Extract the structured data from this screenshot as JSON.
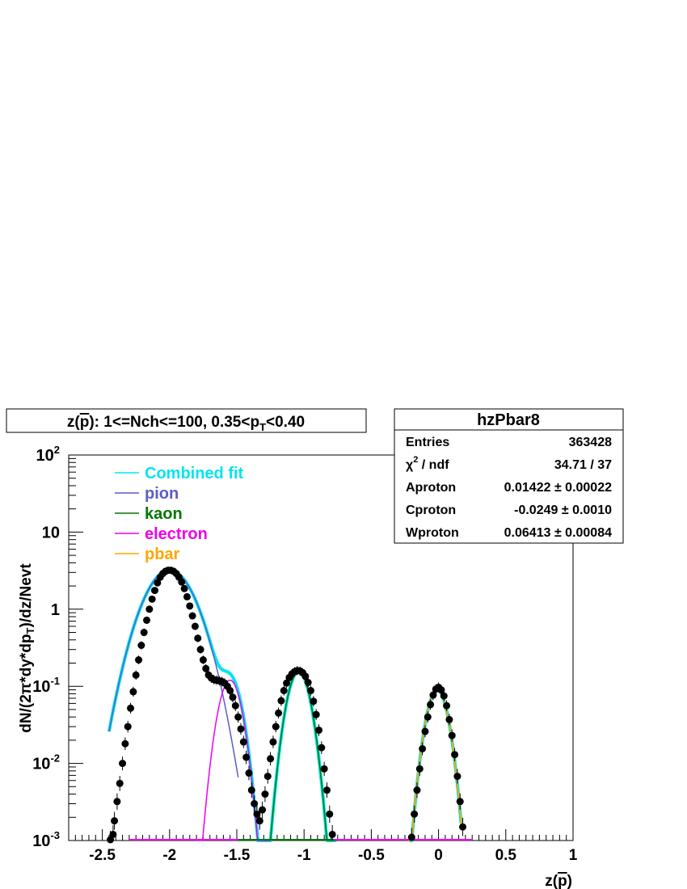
{
  "chart_data": {
    "type": "scatter",
    "title": "z(p̄): 1<=Nch<=100, 0.35<pT<0.40",
    "title_parts": {
      "lead": "z(",
      "p": "p",
      "after_p": "): 1<=Nch<=100, 0.35<p",
      "sub": "T",
      "tail": "<0.40"
    },
    "xlabel": "z(p̄)",
    "xlabel_parts": {
      "lead": "z(",
      "p": "p",
      "tail": ")"
    },
    "ylabel": "dN/(2π*dy*dpT)/dz/Nevt",
    "ylabel_parts": {
      "lead": "dN/(2π*dy*dp",
      "sub": "T",
      "tail": ")/dz/Nevt"
    },
    "xlim": [
      -2.75,
      1.0
    ],
    "ylim": [
      0.001,
      100
    ],
    "yscale": "log",
    "grid": false,
    "legend_placement": "top-left",
    "x_ticks": [
      -2.5,
      -2,
      -1.5,
      -1,
      -0.5,
      0,
      0.5,
      1
    ],
    "x_tick_labels": [
      "-2.5",
      "-2",
      "-1.5",
      "-1",
      "-0.5",
      "0",
      "0.5",
      "1"
    ],
    "y_ticks": [
      {
        "value": 0.001,
        "base": "10",
        "exp": "-3"
      },
      {
        "value": 0.01,
        "base": "10",
        "exp": "-2"
      },
      {
        "value": 0.1,
        "base": "10",
        "exp": "-1"
      },
      {
        "value": 1,
        "base": "1",
        "exp": ""
      },
      {
        "value": 10,
        "base": "10",
        "exp": ""
      },
      {
        "value": 100,
        "base": "10",
        "exp": "2"
      }
    ],
    "data_points": [
      {
        "x": -2.44,
        "y": 0.001
      },
      {
        "x": -2.42,
        "y": 0.0012
      },
      {
        "x": -2.41,
        "y": 0.0018
      },
      {
        "x": -2.39,
        "y": 0.0032
      },
      {
        "x": -2.37,
        "y": 0.0055
      },
      {
        "x": -2.35,
        "y": 0.01
      },
      {
        "x": -2.33,
        "y": 0.018
      },
      {
        "x": -2.31,
        "y": 0.03
      },
      {
        "x": -2.29,
        "y": 0.052
      },
      {
        "x": -2.27,
        "y": 0.085
      },
      {
        "x": -2.25,
        "y": 0.14
      },
      {
        "x": -2.23,
        "y": 0.22
      },
      {
        "x": -2.21,
        "y": 0.34
      },
      {
        "x": -2.19,
        "y": 0.5
      },
      {
        "x": -2.17,
        "y": 0.72
      },
      {
        "x": -2.15,
        "y": 1.0
      },
      {
        "x": -2.13,
        "y": 1.35
      },
      {
        "x": -2.11,
        "y": 1.75
      },
      {
        "x": -2.09,
        "y": 2.2
      },
      {
        "x": -2.07,
        "y": 2.6
      },
      {
        "x": -2.05,
        "y": 2.9
      },
      {
        "x": -2.03,
        "y": 3.1
      },
      {
        "x": -2.01,
        "y": 3.2
      },
      {
        "x": -1.99,
        "y": 3.2
      },
      {
        "x": -1.97,
        "y": 3.1
      },
      {
        "x": -1.95,
        "y": 2.9
      },
      {
        "x": -1.93,
        "y": 2.6
      },
      {
        "x": -1.91,
        "y": 2.25
      },
      {
        "x": -1.89,
        "y": 1.85
      },
      {
        "x": -1.87,
        "y": 1.45
      },
      {
        "x": -1.85,
        "y": 1.1
      },
      {
        "x": -1.83,
        "y": 0.82
      },
      {
        "x": -1.81,
        "y": 0.6
      },
      {
        "x": -1.79,
        "y": 0.42
      },
      {
        "x": -1.77,
        "y": 0.3
      },
      {
        "x": -1.75,
        "y": 0.22
      },
      {
        "x": -1.73,
        "y": 0.17
      },
      {
        "x": -1.71,
        "y": 0.14
      },
      {
        "x": -1.69,
        "y": 0.128
      },
      {
        "x": -1.67,
        "y": 0.122
      },
      {
        "x": -1.65,
        "y": 0.12
      },
      {
        "x": -1.63,
        "y": 0.118
      },
      {
        "x": -1.61,
        "y": 0.115
      },
      {
        "x": -1.59,
        "y": 0.11
      },
      {
        "x": -1.57,
        "y": 0.1
      },
      {
        "x": -1.55,
        "y": 0.088
      },
      {
        "x": -1.53,
        "y": 0.072
      },
      {
        "x": -1.51,
        "y": 0.056
      },
      {
        "x": -1.49,
        "y": 0.04
      },
      {
        "x": -1.47,
        "y": 0.028
      },
      {
        "x": -1.45,
        "y": 0.019
      },
      {
        "x": -1.43,
        "y": 0.012
      },
      {
        "x": -1.41,
        "y": 0.0075
      },
      {
        "x": -1.39,
        "y": 0.0045
      },
      {
        "x": -1.37,
        "y": 0.003
      },
      {
        "x": -1.35,
        "y": 0.0022
      },
      {
        "x": -1.33,
        "y": 0.0018
      },
      {
        "x": -1.31,
        "y": 0.0025
      },
      {
        "x": -1.29,
        "y": 0.004
      },
      {
        "x": -1.27,
        "y": 0.0068
      },
      {
        "x": -1.25,
        "y": 0.0115
      },
      {
        "x": -1.23,
        "y": 0.019
      },
      {
        "x": -1.21,
        "y": 0.03
      },
      {
        "x": -1.19,
        "y": 0.045
      },
      {
        "x": -1.17,
        "y": 0.065
      },
      {
        "x": -1.15,
        "y": 0.088
      },
      {
        "x": -1.13,
        "y": 0.11
      },
      {
        "x": -1.11,
        "y": 0.13
      },
      {
        "x": -1.09,
        "y": 0.145
      },
      {
        "x": -1.07,
        "y": 0.155
      },
      {
        "x": -1.05,
        "y": 0.16
      },
      {
        "x": -1.03,
        "y": 0.158
      },
      {
        "x": -1.01,
        "y": 0.15
      },
      {
        "x": -0.99,
        "y": 0.135
      },
      {
        "x": -0.97,
        "y": 0.112
      },
      {
        "x": -0.95,
        "y": 0.088
      },
      {
        "x": -0.93,
        "y": 0.064
      },
      {
        "x": -0.91,
        "y": 0.043
      },
      {
        "x": -0.89,
        "y": 0.027
      },
      {
        "x": -0.87,
        "y": 0.016
      },
      {
        "x": -0.85,
        "y": 0.0085
      },
      {
        "x": -0.83,
        "y": 0.0045
      },
      {
        "x": -0.81,
        "y": 0.0022
      },
      {
        "x": -0.79,
        "y": 0.0012
      },
      {
        "x": -0.2,
        "y": 0.0011
      },
      {
        "x": -0.18,
        "y": 0.0022
      },
      {
        "x": -0.16,
        "y": 0.0045
      },
      {
        "x": -0.14,
        "y": 0.0085
      },
      {
        "x": -0.12,
        "y": 0.0155
      },
      {
        "x": -0.1,
        "y": 0.026
      },
      {
        "x": -0.08,
        "y": 0.04
      },
      {
        "x": -0.06,
        "y": 0.058
      },
      {
        "x": -0.04,
        "y": 0.077
      },
      {
        "x": -0.02,
        "y": 0.092
      },
      {
        "x": 0.0,
        "y": 0.097
      },
      {
        "x": 0.02,
        "y": 0.09
      },
      {
        "x": 0.04,
        "y": 0.075
      },
      {
        "x": 0.06,
        "y": 0.056
      },
      {
        "x": 0.08,
        "y": 0.037
      },
      {
        "x": 0.1,
        "y": 0.023
      },
      {
        "x": 0.12,
        "y": 0.013
      },
      {
        "x": 0.14,
        "y": 0.0068
      },
      {
        "x": 0.16,
        "y": 0.0032
      },
      {
        "x": 0.18,
        "y": 0.0015
      }
    ],
    "fits": [
      {
        "name": "Combined fit",
        "color": "#00e5ee",
        "width": 4,
        "components": [
          "pion",
          "kaon",
          "electron",
          "pbar"
        ],
        "range": [
          -2.45,
          0.24
        ]
      },
      {
        "name": "pion",
        "color": "#5c5ccd",
        "width": 1.5,
        "A": 3.2,
        "mu": -2.0,
        "sigma": 0.145,
        "range": [
          -2.45,
          -1.49
        ]
      },
      {
        "name": "kaon",
        "color": "#007700",
        "width": 1.5,
        "A": 0.155,
        "mu": -1.04,
        "sigma": 0.066,
        "range": [
          -1.3,
          -0.75
        ]
      },
      {
        "name": "electron",
        "color": "#ee00ee",
        "width": 1.5,
        "A": 0.12,
        "mu": -1.55,
        "sigma": 0.066,
        "range": [
          -1.8,
          -1.25
        ]
      },
      {
        "name": "pbar",
        "color": "#ffa500",
        "width": 2,
        "A": 0.09,
        "mu": -0.01,
        "sigma": 0.063,
        "range": [
          -0.23,
          0.17
        ]
      }
    ],
    "stats_box": {
      "title": "hzPbar8",
      "rows": [
        {
          "label": "Entries",
          "value": "363428"
        },
        {
          "label": "χ² / ndf",
          "label_base": "χ",
          "label_sup": "2",
          "label_tail": " / ndf",
          "value": "34.71 / 37"
        },
        {
          "label": "Aproton",
          "value": "0.01422 ± 0.00022"
        },
        {
          "label": "Cproton",
          "value": "-0.0249 ± 0.0010"
        },
        {
          "label": "Wproton",
          "value": "0.06413 ± 0.00084"
        }
      ]
    }
  }
}
